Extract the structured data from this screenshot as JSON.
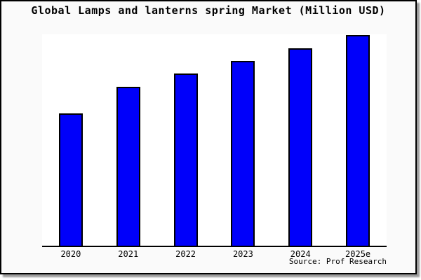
{
  "window": {
    "background_color": "#fafafa",
    "plot_background_color": "#ffffff",
    "border_color": "#000000",
    "shadow_color": "#9b9b9b"
  },
  "chart_data": {
    "type": "bar",
    "title": "Global Lamps and lanterns spring Market (Million USD)",
    "categories": [
      "2020",
      "2021",
      "2022",
      "2023",
      "2024",
      "2025e"
    ],
    "values": [
      62.8,
      75.4,
      81.7,
      87.7,
      93.7,
      100
    ],
    "values_note": "relative bar heights, index 2025e = 100; no y-axis scale shown in image",
    "xlabel": "",
    "ylabel": "",
    "ylim": [
      0,
      100.3
    ],
    "grid": false,
    "legend": false,
    "y_axis_visible": false,
    "bar_color": "#0000fa",
    "bar_border_color": "#000000",
    "axis_line_color": "#000000",
    "source": "Source: Prof Research"
  }
}
